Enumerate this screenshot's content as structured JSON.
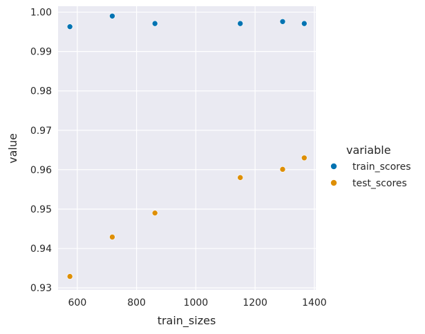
{
  "chart_data": {
    "type": "scatter",
    "xlabel": "train_sizes",
    "ylabel": "value",
    "xlim": [
      535,
      1405
    ],
    "ylim": [
      0.9295,
      1.0015
    ],
    "xticks": [
      600,
      800,
      1000,
      1200,
      1400
    ],
    "yticks": [
      0.93,
      0.94,
      0.95,
      0.96,
      0.97,
      0.98,
      0.99,
      1.0
    ],
    "ytick_labels": [
      "0.93",
      "0.94",
      "0.95",
      "0.96",
      "0.97",
      "0.98",
      "0.99",
      "1.00"
    ],
    "grid": true,
    "legend": {
      "title": "variable",
      "placement": "right"
    },
    "x": [
      575,
      718,
      862,
      1150,
      1293,
      1366
    ],
    "series": [
      {
        "name": "train_scores",
        "color": "#0173b2",
        "values": [
          0.9963,
          0.999,
          0.9971,
          0.9971,
          0.9976,
          0.9971
        ]
      },
      {
        "name": "test_scores",
        "color": "#de8f05",
        "values": [
          0.9329,
          0.9429,
          0.949,
          0.958,
          0.9601,
          0.963
        ]
      }
    ],
    "background": "#eaeaf2",
    "grid_color": "#ffffff"
  }
}
